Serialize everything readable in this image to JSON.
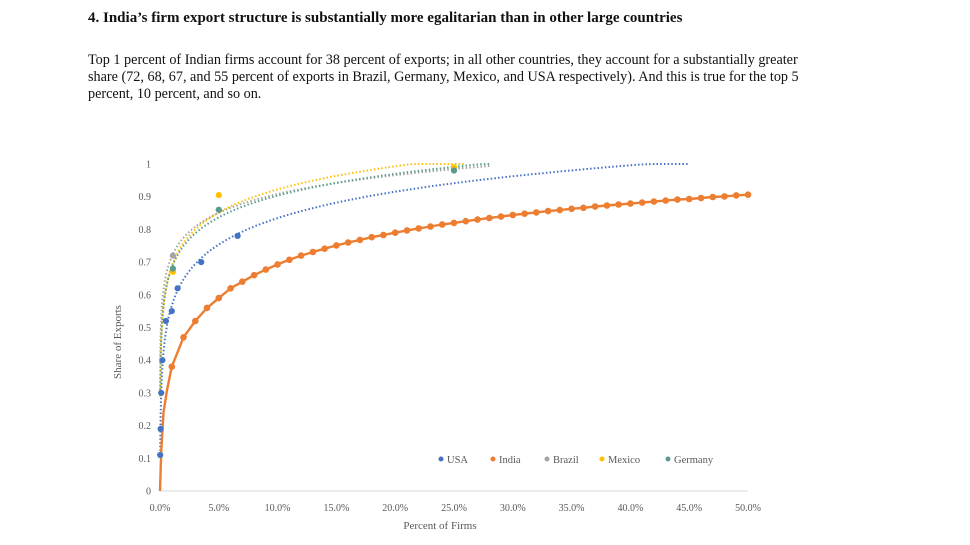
{
  "heading": "4. India’s firm export structure is substantially more egalitarian than in other large countries",
  "paragraph": "Top 1 percent of Indian firms account for 38 percent of exports; in all other countries, they account for a substantially greater share (72, 68, 67, and 55 percent of exports in Brazil, Germany, Mexico, and USA respectively). And this is true for the top 5 percent, 10 percent, and so on.",
  "chart_data": {
    "type": "scatter",
    "title": "",
    "xlabel": "Percent of Firms",
    "ylabel": "Share of Exports",
    "xlim": [
      0,
      50
    ],
    "ylim": [
      0,
      1
    ],
    "x_ticks": [
      "0.0%",
      "5.0%",
      "10.0%",
      "15.0%",
      "20.0%",
      "25.0%",
      "30.0%",
      "35.0%",
      "40.0%",
      "45.0%",
      "50.0%"
    ],
    "y_ticks": [
      "0",
      "0.1",
      "0.2",
      "0.3",
      "0.4",
      "0.5",
      "0.6",
      "0.7",
      "0.8",
      "0.9",
      "1"
    ],
    "legend_position": "bottom-right",
    "series": [
      {
        "name": "USA",
        "color": "#4472C4",
        "points": [
          [
            0.02,
            0.11
          ],
          [
            0.05,
            0.19
          ],
          [
            0.1,
            0.3
          ],
          [
            0.2,
            0.4
          ],
          [
            0.5,
            0.52
          ],
          [
            1.0,
            0.55
          ],
          [
            1.5,
            0.62
          ],
          [
            3.5,
            0.7
          ],
          [
            6.6,
            0.78
          ]
        ],
        "trend_end": 45
      },
      {
        "name": "India",
        "color": "#ED7D31",
        "points": [
          [
            1,
            0.38
          ],
          [
            2,
            0.47
          ],
          [
            3,
            0.52
          ],
          [
            4,
            0.56
          ],
          [
            5,
            0.59
          ],
          [
            6,
            0.62
          ],
          [
            7,
            0.64
          ],
          [
            8,
            0.66
          ],
          [
            9,
            0.677
          ],
          [
            10,
            0.693
          ],
          [
            11,
            0.707
          ],
          [
            12,
            0.72
          ],
          [
            13,
            0.731
          ],
          [
            14,
            0.741
          ],
          [
            15,
            0.751
          ],
          [
            16,
            0.76
          ],
          [
            17,
            0.768
          ],
          [
            18,
            0.776
          ],
          [
            19,
            0.783
          ],
          [
            20,
            0.79
          ],
          [
            21,
            0.797
          ],
          [
            22,
            0.803
          ],
          [
            23,
            0.809
          ],
          [
            24,
            0.815
          ],
          [
            25,
            0.82
          ],
          [
            26,
            0.825
          ],
          [
            27,
            0.83
          ],
          [
            28,
            0.835
          ],
          [
            29,
            0.839
          ],
          [
            30,
            0.844
          ],
          [
            31,
            0.848
          ],
          [
            32,
            0.852
          ],
          [
            33,
            0.856
          ],
          [
            34,
            0.859
          ],
          [
            35,
            0.863
          ],
          [
            36,
            0.866
          ],
          [
            37,
            0.87
          ],
          [
            38,
            0.873
          ],
          [
            39,
            0.876
          ],
          [
            40,
            0.879
          ],
          [
            41,
            0.882
          ],
          [
            42,
            0.885
          ],
          [
            43,
            0.888
          ],
          [
            44,
            0.891
          ],
          [
            45,
            0.893
          ],
          [
            46,
            0.896
          ],
          [
            47,
            0.899
          ],
          [
            48,
            0.901
          ],
          [
            49,
            0.904
          ],
          [
            50,
            0.906
          ]
        ]
      },
      {
        "name": "Brazil",
        "color": "#A5A5A5",
        "points": [
          [
            1.1,
            0.72
          ],
          [
            5.0,
            0.86
          ],
          [
            25.0,
            0.98
          ]
        ],
        "trend_end": 28
      },
      {
        "name": "Mexico",
        "color": "#FFC000",
        "points": [
          [
            1.1,
            0.67
          ],
          [
            5.0,
            0.905
          ],
          [
            25.0,
            0.99
          ]
        ],
        "trend_end": 26
      },
      {
        "name": "Germany",
        "color": "#5B9B8F",
        "points": [
          [
            1.1,
            0.68
          ],
          [
            5.0,
            0.86
          ],
          [
            25.0,
            0.98
          ]
        ],
        "trend_end": 28
      }
    ]
  }
}
